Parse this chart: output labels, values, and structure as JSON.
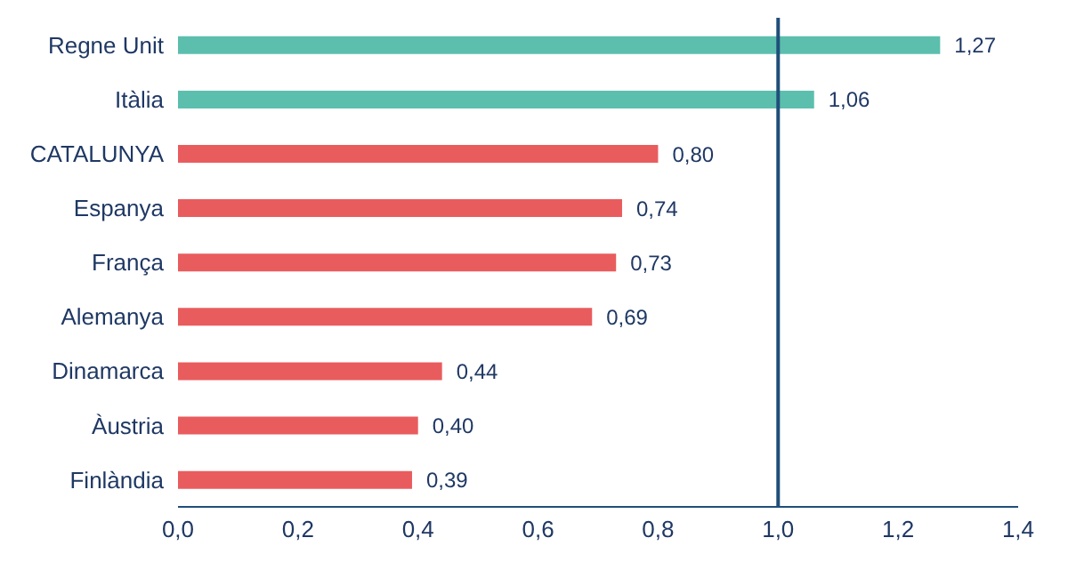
{
  "chart_data": {
    "type": "bar",
    "orientation": "horizontal",
    "categories": [
      "Regne Unit",
      "Itàlia",
      "CATALUNYA",
      "Espanya",
      "França",
      "Alemanya",
      "Dinamarca",
      "Àustria",
      "Finlàndia"
    ],
    "values": [
      1.27,
      1.06,
      0.8,
      0.74,
      0.73,
      0.69,
      0.44,
      0.4,
      0.39
    ],
    "colors": [
      "#5cbfae",
      "#5cbfae",
      "#e95c5e",
      "#e95c5e",
      "#e95c5e",
      "#e95c5e",
      "#e95c5e",
      "#e95c5e",
      "#e95c5e"
    ],
    "value_labels": [
      "1,27",
      "1,06",
      "0,80",
      "0,74",
      "0,73",
      "0,69",
      "0,44",
      "0,40",
      "0,39"
    ],
    "xlim": [
      0,
      1.4
    ],
    "xticks": [
      {
        "value": 0,
        "label": "0,0"
      },
      {
        "value": 0.2,
        "label": "0,2"
      },
      {
        "value": 0.4,
        "label": "0,4"
      },
      {
        "value": 0.6,
        "label": "0,6"
      },
      {
        "value": 0.8,
        "label": "0,8"
      },
      {
        "value": 1.0,
        "label": "1,0"
      },
      {
        "value": 1.2,
        "label": "1,2"
      },
      {
        "value": 1.4,
        "label": "1,4"
      }
    ],
    "ref_lines": [
      {
        "axis": "x",
        "value": 1.0,
        "color": "#1f4e79"
      }
    ],
    "grid": false,
    "legend": false
  }
}
